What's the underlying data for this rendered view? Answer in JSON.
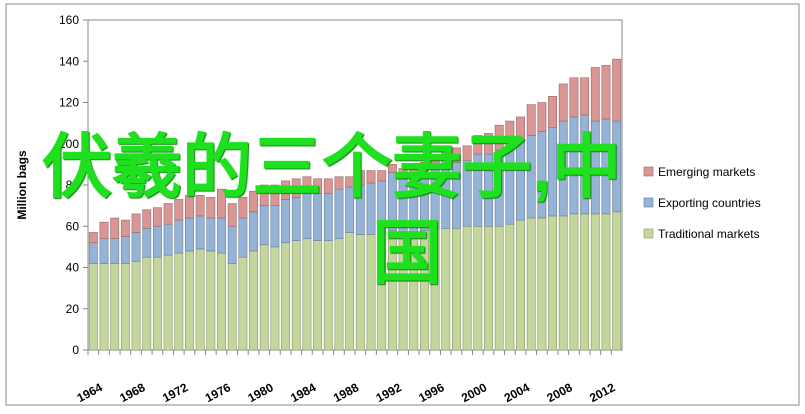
{
  "chart_data": {
    "type": "stacked_bar",
    "y_label": "Million bags",
    "categories": [
      "1964",
      null,
      null,
      null,
      "1968",
      null,
      null,
      null,
      "1972",
      null,
      null,
      null,
      "1976",
      null,
      null,
      null,
      "1980",
      null,
      null,
      null,
      "1984",
      null,
      null,
      null,
      "1988",
      null,
      null,
      null,
      "1992",
      null,
      null,
      null,
      "1996",
      null,
      null,
      null,
      "2000",
      null,
      null,
      null,
      "2004",
      null,
      null,
      null,
      "2008",
      null,
      null,
      null,
      "2012",
      null
    ],
    "series": [
      {
        "name": "Traditional markets",
        "color": "#c3d69b",
        "values": [
          42,
          42,
          42,
          42,
          43,
          45,
          45,
          46,
          47,
          48,
          49,
          48,
          47,
          42,
          45,
          48,
          51,
          50,
          52,
          53,
          54,
          53,
          53,
          54,
          57,
          56,
          56,
          57,
          58,
          57,
          57,
          58,
          59,
          59,
          59,
          60,
          60,
          60,
          60,
          61,
          63,
          64,
          64,
          65,
          65,
          66,
          66,
          66,
          66,
          67
        ]
      },
      {
        "name": "Exporting countries",
        "color": "#95b3d7",
        "values": [
          10,
          12,
          12,
          13,
          14,
          14,
          15,
          15,
          16,
          16,
          16,
          16,
          17,
          18,
          19,
          19,
          19,
          20,
          21,
          21,
          22,
          23,
          23,
          24,
          22,
          24,
          25,
          25,
          28,
          27,
          27,
          29,
          29,
          33,
          32,
          32,
          35,
          35,
          37,
          38,
          38,
          40,
          42,
          43,
          46,
          47,
          48,
          45,
          46,
          44
        ]
      },
      {
        "name": "Emerging markets",
        "color": "#d99694",
        "values": [
          5,
          8,
          10,
          8,
          9,
          9,
          9,
          10,
          10,
          11,
          10,
          10,
          14,
          11,
          10,
          10,
          10,
          10,
          9,
          9,
          8,
          7,
          7,
          6,
          5,
          7,
          6,
          5,
          4,
          4,
          4,
          4,
          5,
          7,
          7,
          7,
          9,
          10,
          12,
          12,
          12,
          15,
          14,
          15,
          18,
          19,
          18,
          26,
          26,
          30
        ]
      }
    ],
    "ylim": [
      0,
      160
    ],
    "yticks": [
      0,
      20,
      40,
      60,
      80,
      100,
      120,
      140,
      160
    ],
    "overlay_text": [
      "伏羲的三个妻子,中",
      "国"
    ]
  }
}
